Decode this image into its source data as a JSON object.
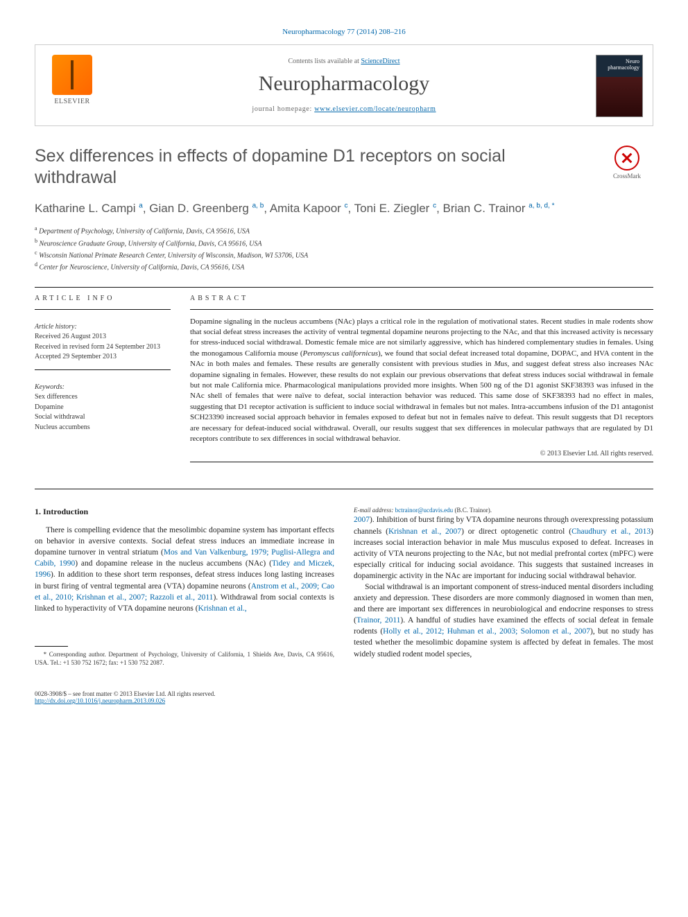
{
  "header": {
    "citation_link": "Neuropharmacology 77 (2014) 208–216",
    "contents_prefix": "Contents lists available at ",
    "contents_link": "ScienceDirect",
    "journal_name": "Neuropharmacology",
    "homepage_label": "journal homepage: ",
    "homepage_url": "www.elsevier.com/locate/neuropharm",
    "publisher": "ELSEVIER",
    "cover_text": "Neuro pharmacology"
  },
  "article": {
    "title": "Sex differences in effects of dopamine D1 receptors on social withdrawal",
    "crossmark": "CrossMark",
    "authors_html": "Katharine L. Campi <sup>a</sup>, Gian D. Greenberg <sup>a, b</sup>, Amita Kapoor <sup>c</sup>, Toni E. Ziegler <sup>c</sup>, Brian C. Trainor <sup>a, b, d, *</sup>",
    "affiliations": [
      {
        "sup": "a",
        "text": "Department of Psychology, University of California, Davis, CA 95616, USA"
      },
      {
        "sup": "b",
        "text": "Neuroscience Graduate Group, University of California, Davis, CA 95616, USA"
      },
      {
        "sup": "c",
        "text": "Wisconsin National Primate Research Center, University of Wisconsin, Madison, WI 53706, USA"
      },
      {
        "sup": "d",
        "text": "Center for Neuroscience, University of California, Davis, CA 95616, USA"
      }
    ]
  },
  "info": {
    "heading": "ARTICLE INFO",
    "history_label": "Article history:",
    "received": "Received 26 August 2013",
    "revised": "Received in revised form 24 September 2013",
    "accepted": "Accepted 29 September 2013",
    "keywords_label": "Keywords:",
    "keywords": [
      "Sex differences",
      "Dopamine",
      "Social withdrawal",
      "Nucleus accumbens"
    ]
  },
  "abstract": {
    "heading": "ABSTRACT",
    "text": "Dopamine signaling in the nucleus accumbens (NAc) plays a critical role in the regulation of motivational states. Recent studies in male rodents show that social defeat stress increases the activity of ventral tegmental dopamine neurons projecting to the NAc, and that this increased activity is necessary for stress-induced social withdrawal. Domestic female mice are not similarly aggressive, which has hindered complementary studies in females. Using the monogamous California mouse (Peromyscus californicus), we found that social defeat increased total dopamine, DOPAC, and HVA content in the NAc in both males and females. These results are generally consistent with previous studies in Mus, and suggest defeat stress also increases NAc dopamine signaling in females. However, these results do not explain our previous observations that defeat stress induces social withdrawal in female but not male California mice. Pharmacological manipulations provided more insights. When 500 ng of the D1 agonist SKF38393 was infused in the NAc shell of females that were naïve to defeat, social interaction behavior was reduced. This same dose of SKF38393 had no effect in males, suggesting that D1 receptor activation is sufficient to induce social withdrawal in females but not males. Intra-accumbens infusion of the D1 antagonist SCH23390 increased social approach behavior in females exposed to defeat but not in females naïve to defeat. This result suggests that D1 receptors are necessary for defeat-induced social withdrawal. Overall, our results suggest that sex differences in molecular pathways that are regulated by D1 receptors contribute to sex differences in social withdrawal behavior.",
    "copyright": "© 2013 Elsevier Ltd. All rights reserved."
  },
  "body": {
    "section_heading": "1. Introduction",
    "p1a": "There is compelling evidence that the mesolimbic dopamine system has important effects on behavior in aversive contexts. Social defeat stress induces an immediate increase in dopamine turnover in ventral striatum (",
    "ref1": "Mos and Van Valkenburg, 1979; Puglisi-Allegra and Cabib, 1990",
    "p1b": ") and dopamine release in the nucleus accumbens (NAc) (",
    "ref2": "Tidey and Miczek, 1996",
    "p1c": "). In addition to these short term responses, defeat stress induces long lasting increases in burst firing of ventral tegmental area (VTA) dopamine neurons (",
    "ref3": "Anstrom et al., 2009; Cao et al., 2010; Krishnan et al., 2007; Razzoli et al., 2011",
    "p1d": "). Withdrawal from social contexts is linked to hyperactivity of VTA dopamine neurons (",
    "ref4": "Krishnan et al.,",
    "p2a_ref": "2007",
    "p2a": "). Inhibition of burst firing by VTA dopamine neurons through overexpressing potassium channels (",
    "ref5": "Krishnan et al., 2007",
    "p2b": ") or direct optogenetic control (",
    "ref6": "Chaudhury et al., 2013",
    "p2c": ") increases social interaction behavior in male Mus musculus exposed to defeat. Increases in activity of VTA neurons projecting to the NAc, but not medial prefrontal cortex (mPFC) were especially critical for inducing social avoidance. This suggests that sustained increases in dopaminergic activity in the NAc are important for inducing social withdrawal behavior.",
    "p3a": "Social withdrawal is an important component of stress-induced mental disorders including anxiety and depression. These disorders are more commonly diagnosed in women than men, and there are important sex differences in neurobiological and endocrine responses to stress (",
    "ref7": "Trainor, 2011",
    "p3b": "). A handful of studies have examined the effects of social defeat in female rodents (",
    "ref8": "Holly et al., 2012; Huhman et al., 2003; Solomon et al., 2007",
    "p3c": "), but no study has tested whether the mesolimbic dopamine system is affected by defeat in females. The most widely studied rodent model species,"
  },
  "footnote": {
    "text": "* Corresponding author. Department of Psychology, University of California, 1 Shields Ave, Davis, CA 95616, USA. Tel.: +1 530 752 1672; fax: +1 530 752 2087.",
    "email_label": "E-mail address: ",
    "email": "bctrainor@ucdavis.edu",
    "email_suffix": " (B.C. Trainor)."
  },
  "footer": {
    "left1": "0028-3908/$ – see front matter © 2013 Elsevier Ltd. All rights reserved.",
    "left2": "http://dx.doi.org/10.1016/j.neuropharm.2013.09.026"
  },
  "colors": {
    "link": "#0066aa",
    "rule": "#111111",
    "text": "#333333"
  }
}
